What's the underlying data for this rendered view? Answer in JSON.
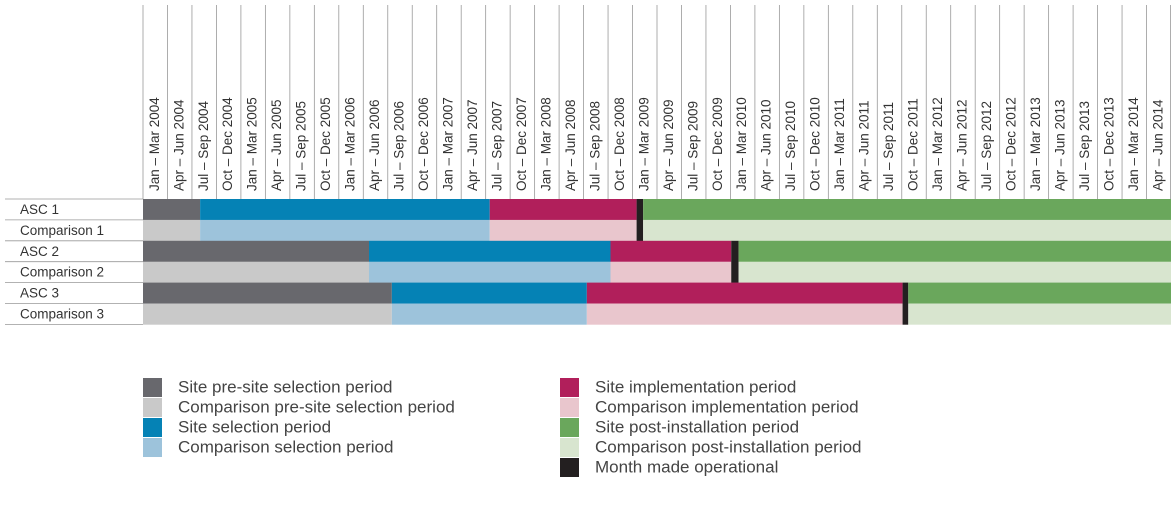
{
  "chart_data": {
    "type": "gantt",
    "columns": [
      "Jan – Mar 2004",
      "Apr – Jun 2004",
      "Jul – Sep 2004",
      "Oct – Dec 2004",
      "Jan – Mar 2005",
      "Apr – Jun 2005",
      "Jul – Sep 2005",
      "Oct – Dec 2005",
      "Jan – Mar 2006",
      "Apr – Jun 2006",
      "Jul – Sep 2006",
      "Oct – Dec 2006",
      "Jan – Mar 2007",
      "Apr – Jun 2007",
      "Jul – Sep 2007",
      "Oct – Dec 2007",
      "Jan – Mar 2008",
      "Apr – Jun 2008",
      "Jul – Sep 2008",
      "Oct – Dec 2008",
      "Jan – Mar 2009",
      "Apr – Jun 2009",
      "Jul – Sep 2009",
      "Oct – Dec 2009",
      "Jan – Mar 2010",
      "Apr – Jun 2010",
      "Jul – Sep 2010",
      "Oct – Dec 2010",
      "Jan – Mar 2011",
      "Apr – Jun 2011",
      "Jul – Sep 2011",
      "Oct – Dec 2011",
      "Jan – Mar 2012",
      "Apr – Jun 2012",
      "Jul – Sep 2012",
      "Oct – Dec 2012",
      "Jan – Mar 2013",
      "Apr – Jun 2013",
      "Jul – Sep 2013",
      "Oct – Dec 2013",
      "Jan – Mar 2014",
      "Apr – Jun 2014"
    ],
    "xlim": [
      0,
      126
    ],
    "legend": [
      {
        "name": "Site pre-site selection period",
        "color": "#68686d"
      },
      {
        "name": "Comparison pre-site selection period",
        "color": "#c9c9c9"
      },
      {
        "name": "Site selection period",
        "color": "#0582b5"
      },
      {
        "name": "Comparison selection period",
        "color": "#9dc3db"
      },
      {
        "name": "Site implementation period",
        "color": "#b11f5b"
      },
      {
        "name": "Comparison implementation period",
        "color": "#e9c6cd"
      },
      {
        "name": "Site post-installation period",
        "color": "#6aa75c"
      },
      {
        "name": "Comparison post-installation period",
        "color": "#d8e5cf"
      },
      {
        "name": "Month made operational",
        "color": "#231f20"
      }
    ],
    "rows": [
      {
        "label": "ASC 1",
        "segments": [
          {
            "key": 0,
            "start": 0,
            "end": 7
          },
          {
            "key": 2,
            "start": 7,
            "end": 42.5
          },
          {
            "key": 4,
            "start": 42.5,
            "end": 60.5
          },
          {
            "key": 8,
            "start": 60.5,
            "end": 61.3
          },
          {
            "key": 6,
            "start": 61.3,
            "end": 126
          }
        ]
      },
      {
        "label": "Comparison 1",
        "segments": [
          {
            "key": 1,
            "start": 0,
            "end": 7
          },
          {
            "key": 3,
            "start": 7,
            "end": 42.5
          },
          {
            "key": 5,
            "start": 42.5,
            "end": 60.5
          },
          {
            "key": 8,
            "start": 60.5,
            "end": 61.3
          },
          {
            "key": 7,
            "start": 61.3,
            "end": 126
          }
        ]
      },
      {
        "label": "ASC 2",
        "segments": [
          {
            "key": 0,
            "start": 0,
            "end": 27.7
          },
          {
            "key": 2,
            "start": 27.7,
            "end": 57.3
          },
          {
            "key": 4,
            "start": 57.3,
            "end": 72.1
          },
          {
            "key": 8,
            "start": 72.1,
            "end": 73
          },
          {
            "key": 6,
            "start": 73,
            "end": 126
          }
        ]
      },
      {
        "label": "Comparison 2",
        "segments": [
          {
            "key": 1,
            "start": 0,
            "end": 27.7
          },
          {
            "key": 3,
            "start": 27.7,
            "end": 57.3
          },
          {
            "key": 5,
            "start": 57.3,
            "end": 72.1
          },
          {
            "key": 8,
            "start": 72.1,
            "end": 73
          },
          {
            "key": 7,
            "start": 73,
            "end": 126
          }
        ]
      },
      {
        "label": "ASC 3",
        "segments": [
          {
            "key": 0,
            "start": 0,
            "end": 30.5
          },
          {
            "key": 2,
            "start": 30.5,
            "end": 54.4
          },
          {
            "key": 4,
            "start": 54.4,
            "end": 93.1
          },
          {
            "key": 8,
            "start": 93.1,
            "end": 93.8
          },
          {
            "key": 6,
            "start": 93.8,
            "end": 126
          }
        ]
      },
      {
        "label": "Comparison 3",
        "segments": [
          {
            "key": 1,
            "start": 0,
            "end": 30.5
          },
          {
            "key": 3,
            "start": 30.5,
            "end": 54.4
          },
          {
            "key": 5,
            "start": 54.4,
            "end": 93.1
          },
          {
            "key": 8,
            "start": 93.1,
            "end": 93.8
          },
          {
            "key": 7,
            "start": 93.8,
            "end": 126
          }
        ]
      }
    ]
  }
}
